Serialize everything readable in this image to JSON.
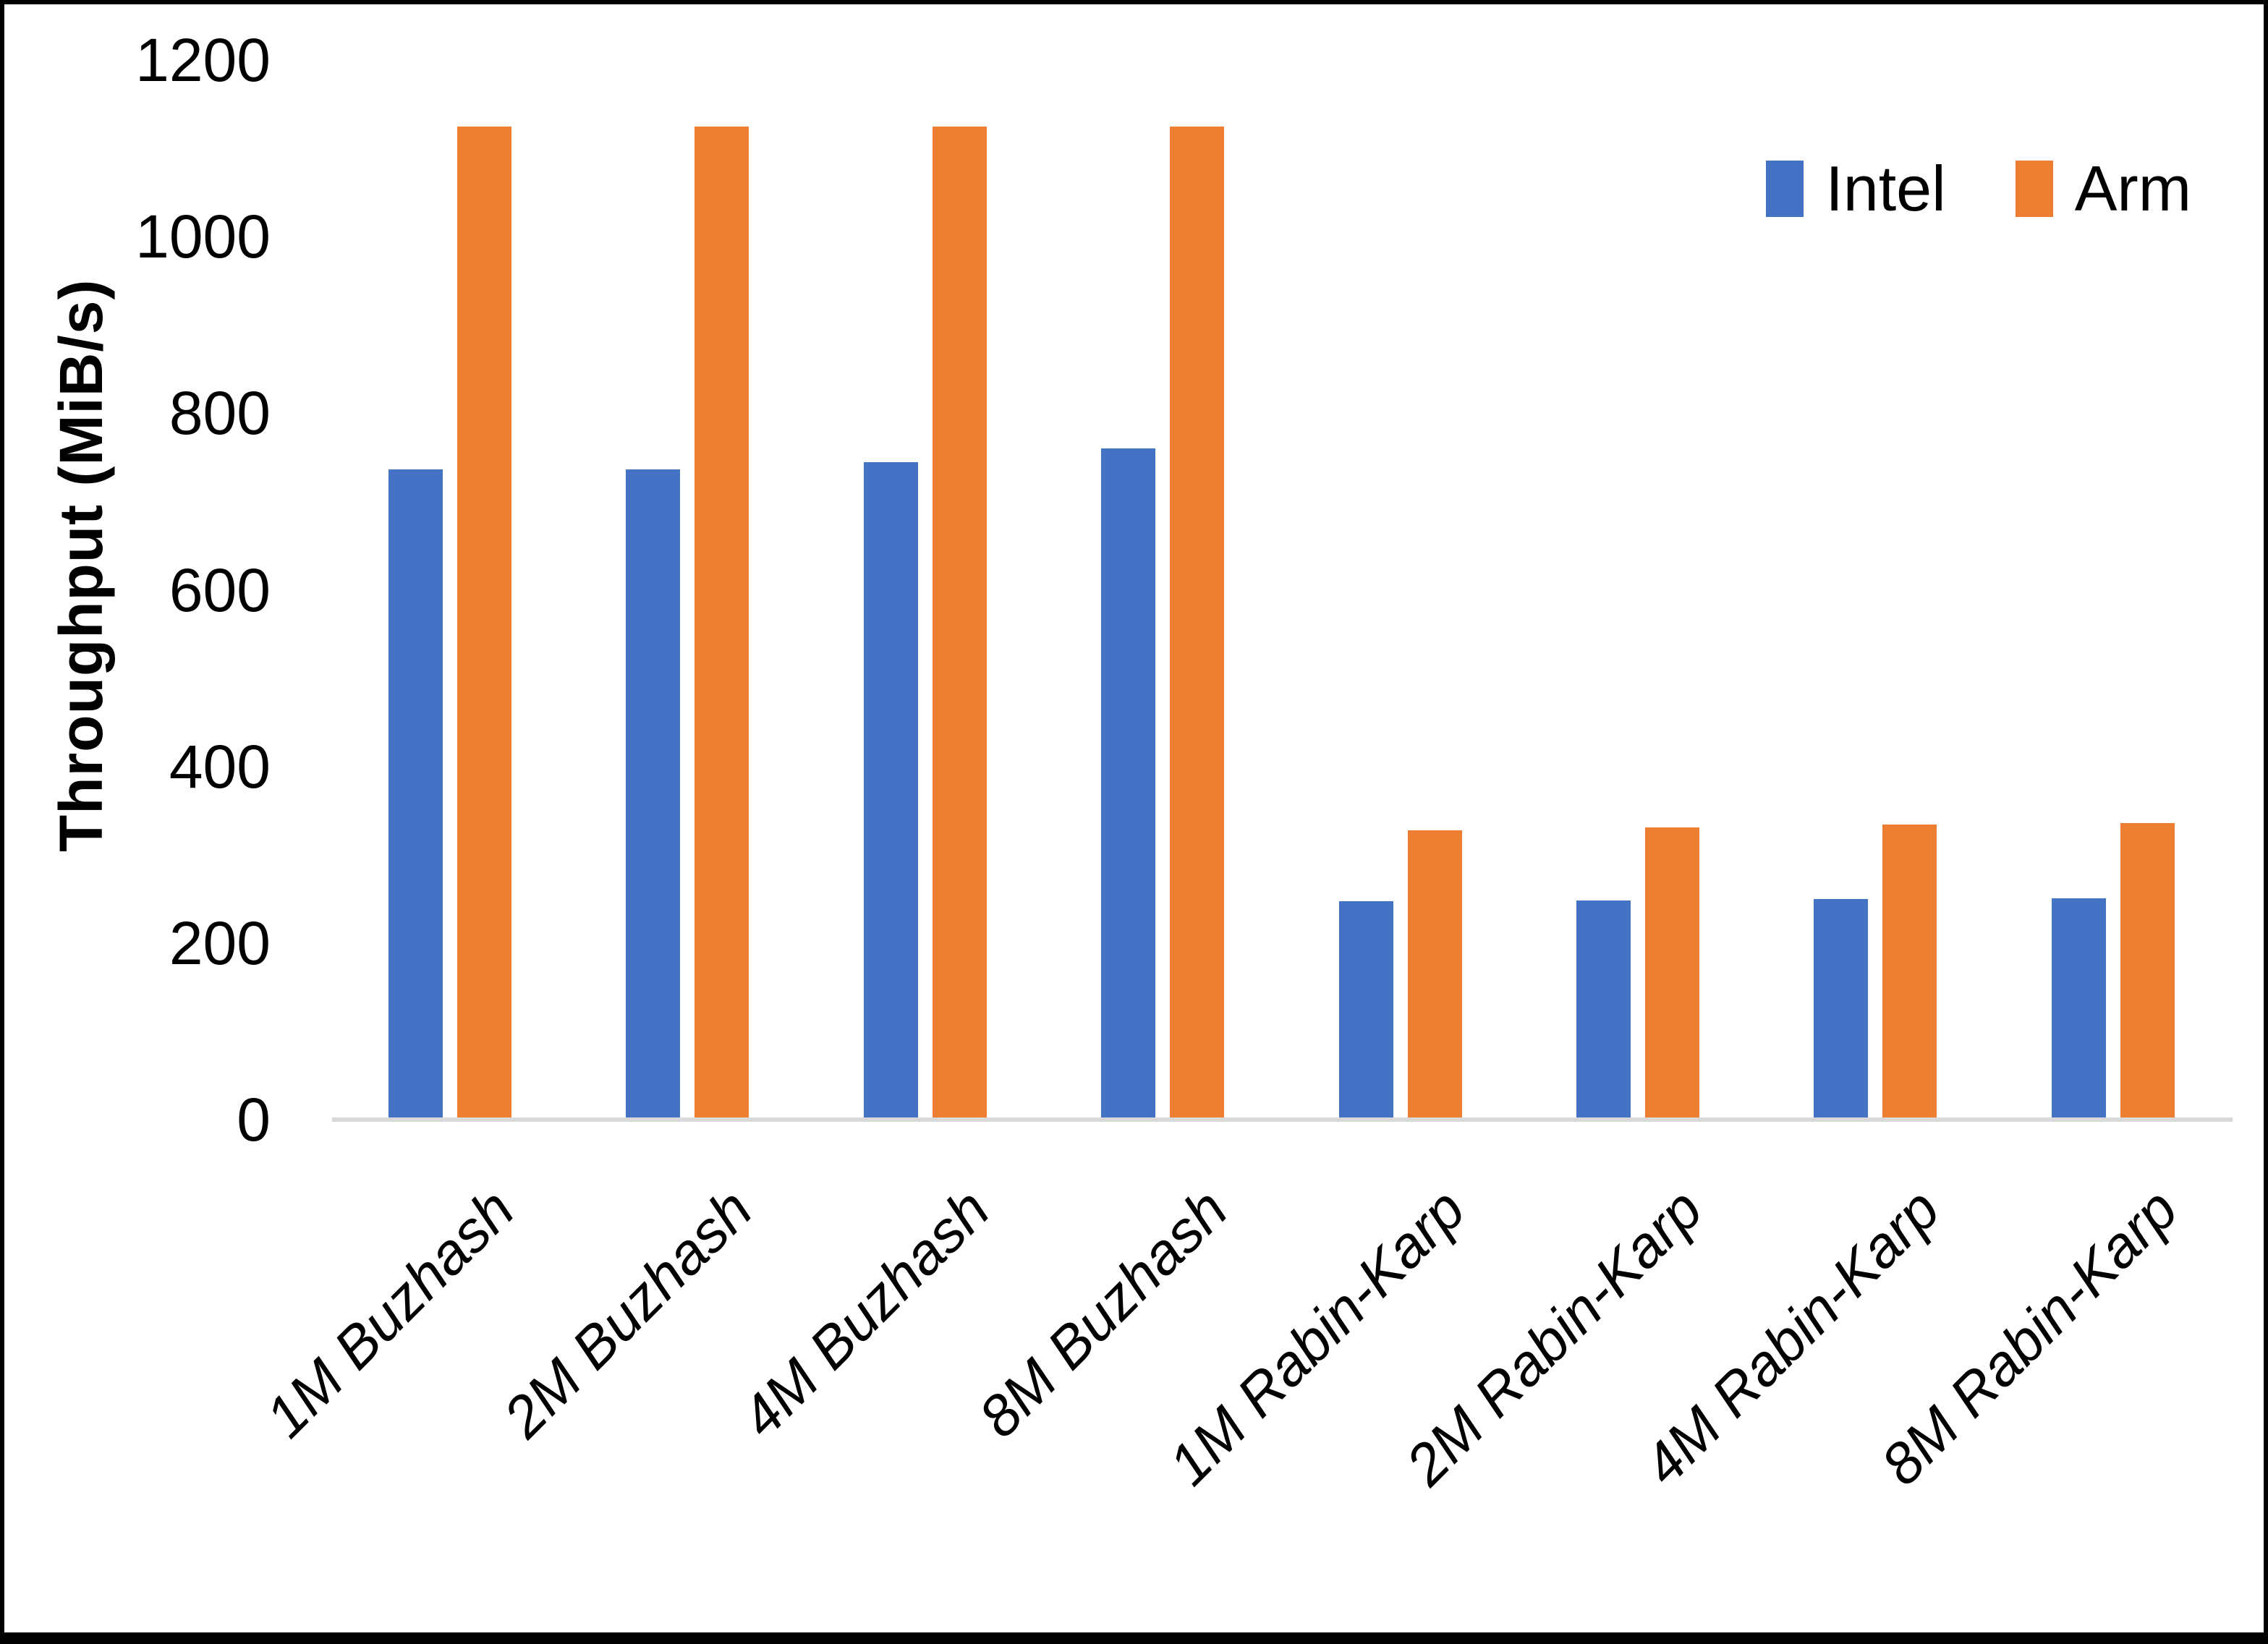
{
  "chart_data": {
    "type": "bar",
    "title": "",
    "xlabel": "",
    "ylabel": "Throughput (MiB/s)",
    "ylim": [
      0,
      1200
    ],
    "yticks": [
      0,
      200,
      400,
      600,
      800,
      1000,
      1200
    ],
    "grid": false,
    "legend_position": "top-right",
    "categories": [
      "1M Buzhash",
      "2M Buzhash",
      "4M Buzhash",
      "8M Buzhash",
      "1M Rabin-Karp",
      "2M Rabin-Karp",
      "4M Rabin-Karp",
      "8M Rabin-Karp"
    ],
    "series": [
      {
        "name": "Intel",
        "color": "#4472C4",
        "values": [
          736,
          736,
          745,
          760,
          247,
          248,
          250,
          251
        ]
      },
      {
        "name": "Arm",
        "color": "#ED7D31",
        "values": [
          1125,
          1125,
          1125,
          1125,
          328,
          331,
          334,
          336
        ]
      }
    ]
  },
  "axes": {
    "axis_line_color": "#d9d9d9",
    "text_color": "#000000"
  },
  "figure": {
    "background": "#ffffff",
    "border_color": "#000000"
  }
}
